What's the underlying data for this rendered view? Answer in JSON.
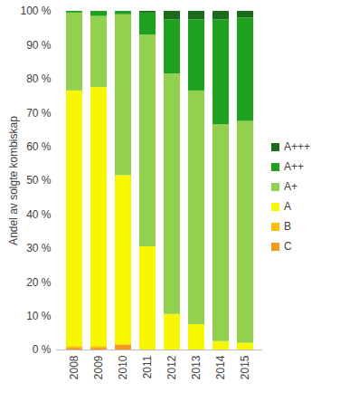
{
  "chart_data": {
    "type": "bar",
    "stacked": true,
    "y_label": "Andel av solgte kombiskap",
    "categories": [
      "2008",
      "2009",
      "2010",
      "2011",
      "2012",
      "2013",
      "2014",
      "2015"
    ],
    "ylim": [
      0,
      100
    ],
    "yticks": [
      {
        "value": 0,
        "label": "0 %"
      },
      {
        "value": 10,
        "label": "10 %"
      },
      {
        "value": 20,
        "label": "20 %"
      },
      {
        "value": 30,
        "label": "30 %"
      },
      {
        "value": 40,
        "label": "40 %"
      },
      {
        "value": 50,
        "label": "50 %"
      },
      {
        "value": 60,
        "label": "60 %"
      },
      {
        "value": 70,
        "label": "70 %"
      },
      {
        "value": 80,
        "label": "80 %"
      },
      {
        "value": 90,
        "label": "90 %"
      },
      {
        "value": 100,
        "label": "100 %"
      }
    ],
    "grid": false,
    "legend": "right",
    "series": [
      {
        "name": "C",
        "color": "#f39a1e",
        "values": [
          0.5,
          0.5,
          1.5,
          0,
          0,
          0,
          0,
          0
        ]
      },
      {
        "name": "B",
        "color": "#ffc000",
        "values": [
          0.5,
          0.5,
          0,
          0,
          0,
          0,
          0,
          0
        ]
      },
      {
        "name": "A",
        "color": "#f7f700",
        "values": [
          75.5,
          76.5,
          50,
          30.5,
          10.5,
          7.5,
          2.5,
          2
        ]
      },
      {
        "name": "A+",
        "color": "#92d050",
        "values": [
          23,
          21,
          47.5,
          62.5,
          71,
          69,
          64,
          65.5
        ]
      },
      {
        "name": "A++",
        "color": "#1fa01f",
        "values": [
          0.5,
          1.5,
          1,
          6.5,
          16,
          21,
          31,
          30.5
        ]
      },
      {
        "name": "A+++",
        "color": "#1b6b1b",
        "values": [
          0,
          0,
          0,
          0.5,
          2.5,
          2.5,
          2.5,
          2
        ]
      }
    ]
  }
}
